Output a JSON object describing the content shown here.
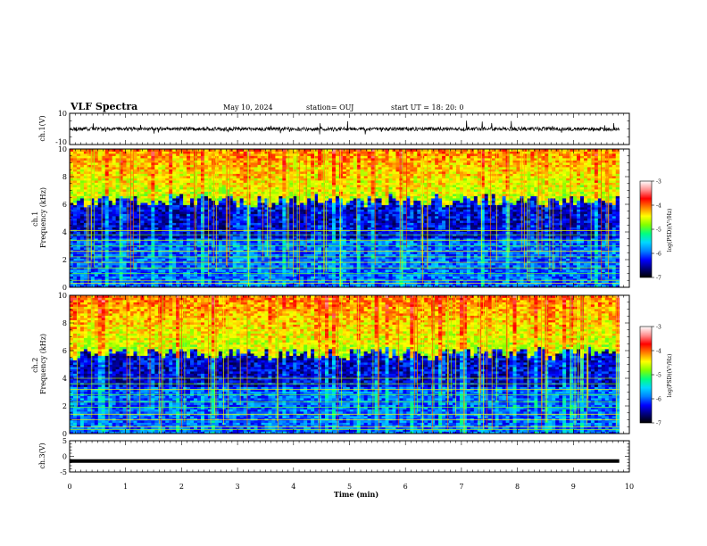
{
  "header": {
    "title": "VLF Spectra",
    "date": "May 10, 2024",
    "station": "station= OUJ",
    "start": "start  UT =   18: 20: 0"
  },
  "colorbar": {
    "label": "log(PSD)(V²/Hz)",
    "ticks": [
      -3,
      -4,
      -5,
      -6,
      -7
    ],
    "palette": [
      "#000000",
      "#00007a",
      "#0000ff",
      "#0080ff",
      "#00d8ff",
      "#00ff80",
      "#80ff00",
      "#ffff00",
      "#ff8000",
      "#ff0000",
      "#ff9090",
      "#ffffff"
    ]
  },
  "chart_data": [
    {
      "type": "line",
      "panel": "ch1-waveform",
      "ylabel": "ch.1(V)",
      "ylim": [
        -10,
        10
      ],
      "yticks": [
        "10",
        "-10"
      ],
      "xlim": [
        0,
        10
      ],
      "level": 0,
      "noise_band": [
        -1.2,
        1.2
      ]
    },
    {
      "type": "heatmap",
      "panel": "ch1-spectrogram",
      "ylabel": "ch.1 Frequency (kHz)",
      "ylim": [
        0,
        10
      ],
      "yticks": [
        "0",
        "2",
        "4",
        "6",
        "8",
        "10"
      ],
      "xlim": [
        0,
        10
      ],
      "data_end_min": 9.82,
      "zlim": [
        -7,
        -3
      ],
      "features": {
        "bright_band_above_khz": 6.5,
        "quiet_band_khz": [
          3.6,
          6.0
        ],
        "horizontal_lines_khz": [
          0.3,
          0.5,
          1.0,
          1.4,
          1.8,
          2.2,
          2.6,
          3.0,
          3.4,
          3.8,
          4.1
        ]
      }
    },
    {
      "type": "heatmap",
      "panel": "ch2-spectrogram",
      "ylabel": "ch.2 Frequency (kHz)",
      "ylim": [
        0,
        10
      ],
      "yticks": [
        "0",
        "2",
        "4",
        "6",
        "8",
        "10"
      ],
      "xlim": [
        0,
        10
      ],
      "data_end_min": 9.82,
      "zlim": [
        -7,
        -3
      ],
      "features": {
        "bright_band_above_khz": 6.0,
        "quiet_band_khz": [
          3.4,
          5.5
        ],
        "horizontal_lines_khz": [
          0.3,
          0.5,
          1.0,
          1.4,
          1.9,
          2.3,
          2.8,
          3.2,
          3.6,
          4.0
        ]
      }
    },
    {
      "type": "line",
      "panel": "ch3-waveform",
      "ylabel": "ch.3(V)",
      "ylim": [
        -5,
        5
      ],
      "yticks": [
        "5",
        "0",
        "-5"
      ],
      "xlim": [
        0,
        10
      ],
      "level": -1.5
    }
  ],
  "xaxis": {
    "label": "Time (min)",
    "ticks": [
      "0",
      "1",
      "2",
      "3",
      "4",
      "5",
      "6",
      "7",
      "8",
      "9",
      "10"
    ]
  }
}
